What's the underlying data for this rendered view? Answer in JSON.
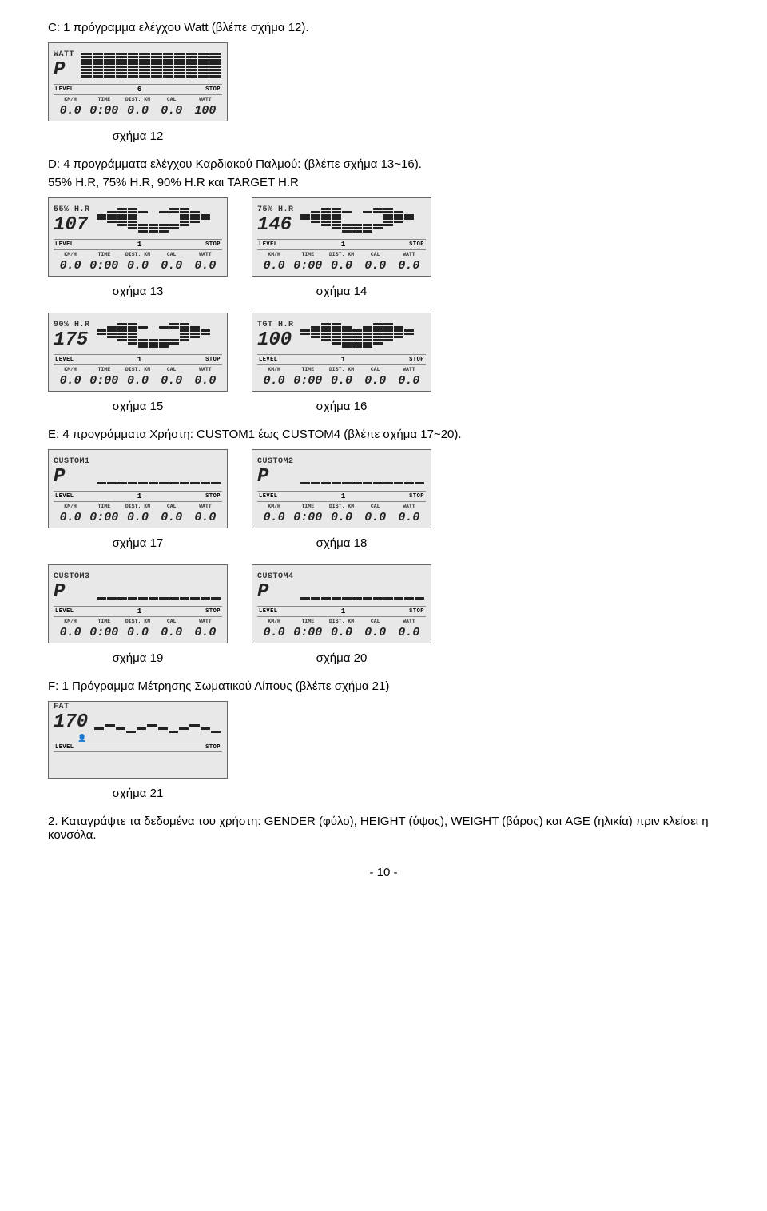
{
  "section_C": "C: 1 πρόγραμμα ελέγχου Watt (βλέπε σχήμα 12).",
  "fig12_caption": "σχήμα 12",
  "section_D": "D: 4 προγράμματα ελέγχου Καρδιακού Παλμού: (βλέπε σχήμα 13~16).",
  "section_D2": "55% H.R, 75% H.R, 90% H.R και TARGET H.R",
  "fig13_caption": "σχήμα 13",
  "fig14_caption": "σχήμα 14",
  "fig15_caption": "σχήμα 15",
  "fig16_caption": "σχήμα 16",
  "section_E": "E: 4 προγράμματα Χρήστη: CUSTOM1 έως CUSTOM4 (βλέπε σχήμα 17~20).",
  "fig17_caption": "σχήμα 17",
  "fig18_caption": "σχήμα 18",
  "fig19_caption": "σχήμα 19",
  "fig20_caption": "σχήμα 20",
  "section_F": "F: 1 Πρόγραμμα Μέτρησης Σωματικού Λίπους (βλέπε σχήμα 21)",
  "fig21_caption": "σχήμα 21",
  "section_2": "2. Καταγράψτε τα δεδομένα του χρήστη: GENDER (φύλο), HEIGHT (ύψος), WEIGHT (βάρος) και AGE (ηλικία) πριν κλείσει η κονσόλα.",
  "page_footer": "- 10 -",
  "midbar": {
    "level": "LEVEL",
    "stop": "STOP"
  },
  "labels": [
    "KM/H",
    "TIME",
    "DIST.",
    "KM",
    "CAL",
    "WATT"
  ],
  "lcd12": {
    "mode_label": "WATT",
    "mode_big": "P",
    "profile_type": "block",
    "level_num": "6",
    "readouts": [
      "0.0",
      "0:00",
      "0.0",
      "0.0",
      "100"
    ]
  },
  "lcd13": {
    "mode_label": "55% H.R",
    "mode_big": "107",
    "profile_type": "heart",
    "level_num": "1",
    "readouts": [
      "0.0",
      "0:00",
      "0.0",
      "0.0",
      "0.0"
    ]
  },
  "lcd14": {
    "mode_label": "75% H.R",
    "mode_big": "146",
    "profile_type": "heart",
    "level_num": "1",
    "readouts": [
      "0.0",
      "0:00",
      "0.0",
      "0.0",
      "0.0"
    ]
  },
  "lcd15": {
    "mode_label": "90% H.R",
    "mode_big": "175",
    "profile_type": "heart",
    "level_num": "1",
    "readouts": [
      "0.0",
      "0:00",
      "0.0",
      "0.0",
      "0.0"
    ]
  },
  "lcd16": {
    "mode_label": "TGT H.R",
    "mode_big": "100",
    "profile_type": "heart-full",
    "level_num": "1",
    "readouts": [
      "0.0",
      "0:00",
      "0.0",
      "0.0",
      "0.0"
    ]
  },
  "lcd17": {
    "mode_label": "CUSTOM1",
    "mode_big": "P",
    "profile_type": "flat",
    "level_num": "1",
    "readouts": [
      "0.0",
      "0:00",
      "0.0",
      "0.0",
      "0.0"
    ]
  },
  "lcd18": {
    "mode_label": "CUSTOM2",
    "mode_big": "P",
    "profile_type": "flat",
    "level_num": "1",
    "readouts": [
      "0.0",
      "0:00",
      "0.0",
      "0.0",
      "0.0"
    ]
  },
  "lcd19": {
    "mode_label": "CUSTOM3",
    "mode_big": "P",
    "profile_type": "flat",
    "level_num": "1",
    "readouts": [
      "0.0",
      "0:00",
      "0.0",
      "0.0",
      "0.0"
    ]
  },
  "lcd20": {
    "mode_label": "CUSTOM4",
    "mode_big": "P",
    "profile_type": "flat",
    "level_num": "1",
    "readouts": [
      "0.0",
      "0:00",
      "0.0",
      "0.0",
      "0.0"
    ]
  },
  "lcd21": {
    "mode_label": "FAT",
    "mode_big": "170",
    "profile_type": "wave",
    "level_num": "",
    "readouts": [
      "",
      "",
      "",
      "",
      ""
    ],
    "empty_readouts": true,
    "show_user_icon": true
  }
}
